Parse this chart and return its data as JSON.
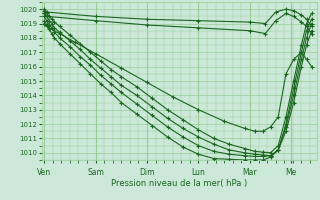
{
  "xlabel": "Pression niveau de la mer( hPa )",
  "ylim": [
    1009.5,
    1020.5
  ],
  "yticks": [
    1010,
    1011,
    1012,
    1013,
    1014,
    1015,
    1016,
    1017,
    1018,
    1019,
    1020
  ],
  "day_labels": [
    "Ven",
    "Sam",
    "Dim",
    "Lun",
    "Mar",
    "Me"
  ],
  "day_positions": [
    0.0,
    1.0,
    2.0,
    3.0,
    4.0,
    4.8
  ],
  "xlim": [
    -0.05,
    5.3
  ],
  "bg_color": "#cce8d8",
  "grid_color": "#99cc99",
  "line_color": "#1a6620",
  "lines": [
    {
      "x": [
        0.0,
        0.05,
        1.0,
        2.0,
        3.0,
        4.0,
        4.3,
        4.5,
        4.7,
        4.85,
        5.0,
        5.1,
        5.2
      ],
      "y": [
        1020.0,
        1019.8,
        1019.5,
        1019.3,
        1019.2,
        1019.1,
        1019.0,
        1019.8,
        1020.0,
        1019.9,
        1019.6,
        1019.3,
        1018.8
      ]
    },
    {
      "x": [
        0.0,
        0.05,
        1.0,
        2.0,
        3.0,
        4.0,
        4.3,
        4.5,
        4.7,
        4.85,
        5.0,
        5.1,
        5.2
      ],
      "y": [
        1019.7,
        1019.5,
        1019.2,
        1018.9,
        1018.7,
        1018.5,
        1018.3,
        1019.2,
        1019.7,
        1019.5,
        1019.1,
        1018.8,
        1018.3
      ]
    },
    {
      "x": [
        0.0,
        0.05,
        0.1,
        0.15,
        0.2,
        0.3,
        0.5,
        0.7,
        0.9,
        1.1,
        1.3,
        1.5,
        1.8,
        2.1,
        2.4,
        2.7,
        3.0,
        3.3,
        3.6,
        3.9,
        4.1,
        4.25,
        4.4,
        4.55,
        4.7,
        4.85,
        5.0,
        5.1,
        5.2
      ],
      "y": [
        1019.9,
        1019.7,
        1019.5,
        1019.3,
        1019.1,
        1018.8,
        1018.2,
        1017.6,
        1017.0,
        1016.4,
        1015.8,
        1015.3,
        1014.6,
        1013.8,
        1013.0,
        1012.3,
        1011.6,
        1011.0,
        1010.6,
        1010.3,
        1010.1,
        1010.05,
        1010.0,
        1010.5,
        1012.5,
        1015.0,
        1017.5,
        1019.0,
        1019.7
      ]
    },
    {
      "x": [
        0.0,
        0.05,
        0.1,
        0.15,
        0.2,
        0.3,
        0.5,
        0.7,
        0.9,
        1.1,
        1.3,
        1.5,
        1.8,
        2.1,
        2.4,
        2.7,
        3.0,
        3.3,
        3.6,
        3.9,
        4.1,
        4.25,
        4.4,
        4.55,
        4.7,
        4.85,
        5.0,
        5.1,
        5.2
      ],
      "y": [
        1019.7,
        1019.5,
        1019.2,
        1019.0,
        1018.7,
        1018.4,
        1017.8,
        1017.2,
        1016.5,
        1015.9,
        1015.3,
        1014.7,
        1014.0,
        1013.2,
        1012.4,
        1011.7,
        1011.1,
        1010.6,
        1010.2,
        1010.0,
        1009.9,
        1009.85,
        1009.8,
        1010.2,
        1012.0,
        1014.5,
        1017.0,
        1018.5,
        1019.3
      ]
    },
    {
      "x": [
        0.0,
        0.05,
        0.1,
        0.15,
        0.2,
        0.3,
        0.5,
        0.7,
        0.9,
        1.1,
        1.3,
        1.5,
        1.8,
        2.1,
        2.4,
        2.7,
        3.0,
        3.3,
        3.6,
        3.9,
        4.1,
        4.25,
        4.4,
        4.55,
        4.7,
        4.85,
        5.0,
        5.1,
        5.2
      ],
      "y": [
        1019.5,
        1019.2,
        1018.9,
        1018.7,
        1018.4,
        1018.0,
        1017.4,
        1016.7,
        1016.1,
        1015.4,
        1014.8,
        1014.2,
        1013.4,
        1012.6,
        1011.8,
        1011.1,
        1010.5,
        1010.1,
        1009.9,
        1009.8,
        1009.75,
        1009.75,
        1009.8,
        1010.2,
        1011.8,
        1014.0,
        1016.5,
        1018.0,
        1019.0
      ]
    },
    {
      "x": [
        0.0,
        0.05,
        0.1,
        0.15,
        0.2,
        0.3,
        0.5,
        0.7,
        0.9,
        1.1,
        1.3,
        1.5,
        1.8,
        2.1,
        2.4,
        2.7,
        3.0,
        3.3,
        3.6,
        3.9,
        4.1,
        4.25,
        4.4,
        4.55,
        4.7,
        4.85,
        5.0,
        5.1,
        5.2
      ],
      "y": [
        1019.2,
        1018.9,
        1018.6,
        1018.3,
        1018.0,
        1017.6,
        1016.9,
        1016.2,
        1015.5,
        1014.8,
        1014.2,
        1013.5,
        1012.7,
        1011.9,
        1011.1,
        1010.4,
        1009.9,
        1009.6,
        1009.55,
        1009.5,
        1009.5,
        1009.5,
        1009.7,
        1010.2,
        1011.5,
        1013.5,
        1016.0,
        1017.5,
        1018.5
      ]
    },
    {
      "x": [
        0.0,
        0.05,
        0.3,
        0.6,
        1.0,
        1.5,
        2.0,
        2.5,
        3.0,
        3.5,
        3.9,
        4.1,
        4.25,
        4.4,
        4.55,
        4.7,
        4.85,
        5.0,
        5.1,
        5.2
      ],
      "y": [
        1019.0,
        1018.8,
        1018.3,
        1017.7,
        1016.9,
        1015.9,
        1014.9,
        1013.9,
        1013.0,
        1012.2,
        1011.7,
        1011.5,
        1011.5,
        1011.8,
        1012.5,
        1015.5,
        1016.5,
        1017.0,
        1016.5,
        1016.0
      ]
    }
  ]
}
